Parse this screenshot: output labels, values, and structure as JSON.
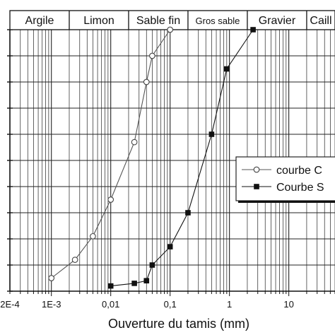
{
  "chart_data": {
    "type": "scatter",
    "xscale": "log",
    "xlim": [
      0.0002,
      60
    ],
    "ylim": [
      0,
      100
    ],
    "xlabel": "Ouverture du tamis (mm)",
    "xtick_labels": [
      {
        "value": 0.0002,
        "label": "2E-4"
      },
      {
        "value": 0.001,
        "label": "1E-3"
      },
      {
        "value": 0.01,
        "label": "0,01"
      },
      {
        "value": 0.1,
        "label": "0,1"
      },
      {
        "value": 1,
        "label": "1"
      },
      {
        "value": 10,
        "label": "10"
      }
    ],
    "grid": true,
    "soil_classes": [
      {
        "name": "Argile",
        "from": 0.0002,
        "to": 0.002
      },
      {
        "name": "Limon",
        "from": 0.002,
        "to": 0.02
      },
      {
        "name": "Sable fin",
        "from": 0.02,
        "to": 0.2
      },
      {
        "name": "Gros sable",
        "from": 0.2,
        "to": 2
      },
      {
        "name": "Gravier",
        "from": 2,
        "to": 20
      },
      {
        "name": "Caill",
        "from": 20,
        "to": 60
      }
    ],
    "legend_position": "right",
    "series": [
      {
        "name": "courbe C",
        "marker": "open-circle",
        "color": "#555555",
        "points": [
          {
            "x": 0.001,
            "y": 5
          },
          {
            "x": 0.0025,
            "y": 12
          },
          {
            "x": 0.005,
            "y": 21
          },
          {
            "x": 0.01,
            "y": 35
          },
          {
            "x": 0.025,
            "y": 57
          },
          {
            "x": 0.04,
            "y": 80
          },
          {
            "x": 0.05,
            "y": 90
          },
          {
            "x": 0.1,
            "y": 100
          }
        ]
      },
      {
        "name": "Courbe S",
        "marker": "filled-square",
        "color": "#111111",
        "points": [
          {
            "x": 0.01,
            "y": 2
          },
          {
            "x": 0.025,
            "y": 3
          },
          {
            "x": 0.04,
            "y": 4
          },
          {
            "x": 0.05,
            "y": 10
          },
          {
            "x": 0.1,
            "y": 17
          },
          {
            "x": 0.2,
            "y": 30
          },
          {
            "x": 0.5,
            "y": 60
          },
          {
            "x": 0.9,
            "y": 85
          },
          {
            "x": 2.5,
            "y": 100
          }
        ]
      }
    ]
  }
}
